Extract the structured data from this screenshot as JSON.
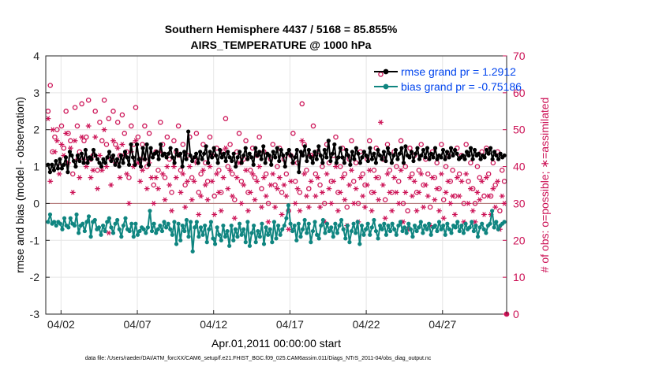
{
  "chart_data": {
    "type": "line",
    "title": "Southern Hemisphere 4437 / 5168 = 85.855%",
    "subtitle": "AIRS_TEMPERATURE @ 1000 hPa",
    "xlabel": "Apr.01,2011 00:00:00 start",
    "ylabel": "rmse and bias (model - observation)",
    "y2label": "# of obs: o=possible; ∗=assimilated",
    "footer": "data file: /Users/raeder/DAI/ATM_forcXX/CAM6_setup/f.e21.FHIST_BGC.f09_025.CAM6assim.011/Diags_NTrS_2011-04/obs_diag_output.nc",
    "xlim": [
      1.0,
      31.2
    ],
    "ylim": [
      -3,
      4
    ],
    "y2lim": [
      0,
      70
    ],
    "x_ticks": [
      {
        "value": 2,
        "label": "04/02"
      },
      {
        "value": 7,
        "label": "04/07"
      },
      {
        "value": 12,
        "label": "04/12"
      },
      {
        "value": 17,
        "label": "04/17"
      },
      {
        "value": 22,
        "label": "04/22"
      },
      {
        "value": 27,
        "label": "04/27"
      }
    ],
    "y_ticks": [
      -3,
      -2,
      -1,
      0,
      1,
      2,
      3,
      4
    ],
    "y2_ticks": [
      0,
      10,
      20,
      30,
      40,
      50,
      60,
      70
    ],
    "grid": true,
    "legend_position": "top-right",
    "colors": {
      "rmse": "#000000",
      "bias": "#0f8580",
      "obs": "#cc1155",
      "legend_text": "#0044ee"
    },
    "series": [
      {
        "name": "rmse grand pr = 1.2912",
        "axis": "left",
        "color": "#000000",
        "marker": "filled-circle",
        "values": [
          1.05,
          0.85,
          1.05,
          0.9,
          1.15,
          0.95,
          1.2,
          0.95,
          1.05,
          1.25,
          0.85,
          1.4,
          1.3,
          1.15,
          1.0,
          1.3,
          1.15,
          1.35,
          1.1,
          1.45,
          1.1,
          1.25,
          1.2,
          1.45,
          1.3,
          1.2,
          1.1,
          1.0,
          1.2,
          1.1,
          1.25,
          1.4,
          1.15,
          1.3,
          1.05,
          1.2,
          1.0,
          1.3,
          1.1,
          1.4,
          1.25,
          1.05,
          1.6,
          1.25,
          1.05,
          1.6,
          1.2,
          1.0,
          1.5,
          1.2,
          1.6,
          1.05,
          1.5,
          1.25,
          1.35,
          1.4,
          1.2,
          1.6,
          1.3,
          1.35,
          1.25,
          1.35,
          1.5,
          1.25,
          1.1,
          1.45,
          1.3,
          1.35,
          1.0,
          1.4,
          1.2,
          1.95,
          1.3,
          1.15,
          1.25,
          1.35,
          1.1,
          1.4,
          1.2,
          1.35,
          1.55,
          1.1,
          1.4,
          1.25,
          1.5,
          1.3,
          1.1,
          1.45,
          1.25,
          1.35,
          1.15,
          1.4,
          1.25,
          1.15,
          1.35,
          1.0,
          1.25,
          1.4,
          1.1,
          1.3,
          1.5,
          1.2,
          1.35,
          1.25,
          1.05,
          1.5,
          1.3,
          1.4,
          1.2,
          1.55,
          1.1,
          1.35,
          1.3,
          1.05,
          1.4,
          1.25,
          1.5,
          1.15,
          1.45,
          1.3,
          1.0,
          1.35,
          1.45,
          1.3,
          1.1,
          1.25,
          1.45,
          0.85,
          1.4,
          1.3,
          1.55,
          1.15,
          1.45,
          1.25,
          1.1,
          1.4,
          1.2,
          1.55,
          1.3,
          1.1,
          1.45,
          1.25,
          1.7,
          1.15,
          1.35,
          1.6,
          1.1,
          1.25,
          1.5,
          1.25,
          1.1,
          1.45,
          1.3,
          1.05,
          1.4,
          1.2,
          1.5,
          1.35,
          1.1,
          1.25,
          1.4,
          1.3,
          1.15,
          1.5,
          1.2,
          1.35,
          1.1,
          1.45,
          1.3,
          1.2,
          1.4,
          1.15,
          1.5,
          1.35,
          1.1,
          1.3,
          1.45,
          1.2,
          1.35,
          1.5,
          1.1,
          1.55,
          1.3,
          1.25,
          1.4,
          1.15,
          1.35,
          1.5,
          1.2,
          1.3,
          1.45,
          1.25,
          1.5,
          1.2,
          1.35,
          1.25,
          1.5,
          1.2,
          1.3,
          1.25,
          1.45,
          1.2,
          1.4,
          1.25,
          1.5,
          1.3,
          1.45,
          1.35,
          1.2,
          1.25,
          1.3,
          1.2,
          1.4,
          1.3,
          1.5,
          1.2,
          1.45,
          1.3,
          1.35,
          1.2,
          1.3,
          1.25,
          1.45,
          1.35,
          1.5,
          1.2,
          1.4,
          1.3,
          1.2,
          1.35,
          1.25,
          1.3
        ]
      },
      {
        "name": "bias grand pr = -0.75186",
        "axis": "left",
        "color": "#0f8580",
        "marker": "filled-circle",
        "values": [
          -0.5,
          -0.3,
          -0.55,
          -0.5,
          -0.6,
          -0.5,
          -0.55,
          -0.7,
          -0.4,
          -0.6,
          -0.65,
          -0.4,
          -0.55,
          -0.6,
          -0.3,
          -0.8,
          -0.6,
          -0.55,
          -0.75,
          -0.5,
          -0.35,
          -0.9,
          -0.5,
          -0.45,
          -0.7,
          -0.65,
          -0.85,
          -0.6,
          -0.75,
          -0.5,
          -0.4,
          -0.65,
          -0.8,
          -0.55,
          -0.45,
          -0.7,
          -0.9,
          -0.6,
          -0.4,
          -0.7,
          -0.75,
          -0.55,
          -0.9,
          -0.55,
          -0.85,
          -0.75,
          -0.65,
          -0.7,
          -0.8,
          -0.65,
          -0.2,
          -0.75,
          -0.55,
          -0.8,
          -0.7,
          -0.6,
          -0.75,
          -0.5,
          -0.65,
          -0.55,
          -0.7,
          -0.85,
          -0.5,
          -1.1,
          -0.55,
          -1.0,
          -0.6,
          -0.75,
          -0.45,
          -0.9,
          -0.5,
          -1.3,
          -0.65,
          -0.5,
          -0.9,
          -0.65,
          -0.85,
          -0.6,
          -1.05,
          -0.7,
          -0.5,
          -0.95,
          -1.1,
          -0.65,
          -0.85,
          -1.0,
          -0.6,
          -0.9,
          -0.75,
          -1.15,
          -0.6,
          -1.0,
          -0.7,
          -0.9,
          -0.55,
          -0.85,
          -0.7,
          -1.05,
          -0.5,
          -1.15,
          -0.8,
          -0.6,
          -1.05,
          -0.75,
          -0.9,
          -0.55,
          -1.1,
          -0.65,
          -0.85,
          -0.7,
          -1.05,
          -0.5,
          -0.95,
          -0.6,
          -0.85,
          -0.7,
          -0.6,
          -0.4,
          -0.05,
          -0.55,
          -0.75,
          -0.6,
          -1.0,
          -0.55,
          -0.9,
          -0.7,
          -0.45,
          -0.8,
          -0.55,
          -1.05,
          -0.75,
          -0.5,
          -0.85,
          -0.95,
          -0.6,
          -0.45,
          -0.8,
          -0.55,
          -0.75,
          -0.65,
          -0.9,
          -0.55,
          -0.8,
          -0.6,
          -0.45,
          -0.7,
          -0.95,
          -0.6,
          -1.05,
          -0.75,
          -0.55,
          -0.8,
          -0.5,
          -1.1,
          -0.6,
          -0.85,
          -0.7,
          -0.55,
          -0.85,
          -0.65,
          -0.45,
          -0.75,
          -0.95,
          -0.6,
          -0.7,
          -0.55,
          -0.85,
          -0.6,
          -0.75,
          -0.55,
          -0.7,
          -0.85,
          -0.6,
          -0.5,
          -0.75,
          -0.65,
          -0.8,
          -0.55,
          -0.7,
          -0.9,
          -0.6,
          -0.75,
          -0.65,
          -0.5,
          -0.8,
          -0.6,
          -0.7,
          -0.55,
          -0.85,
          -0.65,
          -0.6,
          -0.75,
          -0.5,
          -0.7,
          -0.6,
          -0.85,
          -0.55,
          -0.7,
          -0.8,
          -0.6,
          -0.65,
          -0.5,
          -0.75,
          -0.6,
          -0.8,
          -0.55,
          -0.7,
          -0.65,
          -0.5,
          -0.75,
          -0.6,
          -0.9,
          -0.65,
          -0.55,
          -0.7,
          -0.8,
          -0.6,
          -0.55,
          -0.2,
          -0.65,
          -0.5,
          -0.7,
          -0.6,
          -0.55,
          -0.5
        ]
      },
      {
        "name": "# of obs possible",
        "axis": "right",
        "color": "#cc1155",
        "marker": "open-circle",
        "values": [
          55,
          62,
          44,
          48,
          50,
          40,
          51,
          45,
          55,
          49,
          47,
          38,
          56,
          51,
          44,
          57,
          47,
          48,
          58,
          42,
          43,
          55,
          39,
          52,
          47,
          58,
          46,
          53,
          42,
          55,
          46,
          52,
          43,
          54,
          49,
          44,
          37,
          51,
          46,
          56,
          48,
          42,
          46,
          51,
          40,
          49,
          43,
          35,
          44,
          39,
          52,
          46,
          37,
          48,
          42,
          33,
          47,
          44,
          51,
          39,
          46,
          35,
          43,
          48,
          37,
          42,
          49,
          33,
          38,
          46,
          41,
          36,
          48,
          43,
          32,
          45,
          39,
          33,
          44,
          53,
          40,
          46,
          38,
          31,
          44,
          49,
          36,
          42,
          47,
          33,
          39,
          45,
          37,
          43,
          48,
          34,
          44,
          38,
          30,
          42,
          46,
          35,
          40,
          45,
          33,
          42,
          38,
          28,
          43,
          49,
          36,
          41,
          33,
          57,
          46,
          39,
          34,
          43,
          51,
          38,
          44,
          35,
          40,
          30,
          46,
          41,
          36,
          43,
          48,
          33,
          40,
          45,
          38,
          29,
          42,
          47,
          36,
          41,
          30,
          44,
          38,
          35,
          42,
          47,
          33,
          39,
          45,
          37,
          65,
          42,
          31,
          46,
          39,
          33,
          44,
          40,
          36,
          47,
          30,
          40,
          28,
          45,
          38,
          43,
          33,
          39,
          46,
          35,
          42,
          38,
          29,
          44,
          37,
          41,
          34,
          46,
          31,
          40,
          43,
          36,
          39,
          32,
          45,
          38,
          43,
          30,
          46,
          36,
          41,
          34,
          30,
          40,
          37,
          44,
          32,
          45,
          38,
          32,
          41,
          35,
          44,
          28,
          39,
          36
        ]
      },
      {
        "name": "# of obs assimilated",
        "axis": "right",
        "color": "#cc1155",
        "marker": "asterisk",
        "values": [
          53,
          36,
          50,
          44,
          47,
          38,
          46,
          43,
          49,
          41,
          45,
          33,
          47,
          42,
          37,
          48,
          42,
          40,
          51,
          37,
          39,
          48,
          34,
          43,
          39,
          50,
          40,
          22,
          35,
          47,
          41,
          45,
          37,
          46,
          43,
          38,
          30,
          44,
          40,
          47,
          41,
          36,
          39,
          42,
          34,
          41,
          37,
          30,
          37,
          34,
          44,
          38,
          31,
          40,
          35,
          28,
          40,
          37,
          43,
          33,
          38,
          29,
          36,
          40,
          31,
          36,
          41,
          27,
          32,
          39,
          35,
          31,
          40,
          36,
          27,
          38,
          33,
          28,
          37,
          45,
          34,
          39,
          32,
          26,
          37,
          41,
          30,
          35,
          39,
          28,
          33,
          38,
          31,
          36,
          40,
          29,
          37,
          32,
          25,
          35,
          38,
          29,
          34,
          37,
          27,
          35,
          32,
          23,
          36,
          41,
          30,
          34,
          28,
          47,
          38,
          32,
          29,
          36,
          43,
          32,
          37,
          29,
          33,
          25,
          38,
          34,
          30,
          36,
          40,
          28,
          33,
          37,
          31,
          24,
          35,
          39,
          30,
          34,
          25,
          37,
          32,
          29,
          35,
          39,
          28,
          33,
          37,
          31,
          52,
          35,
          26,
          38,
          33,
          28,
          37,
          33,
          30,
          39,
          25,
          33,
          23,
          37,
          32,
          36,
          28,
          33,
          38,
          29,
          35,
          32,
          24,
          37,
          31,
          34,
          28,
          38,
          26,
          33,
          36,
          30,
          32,
          27,
          37,
          32,
          36,
          25,
          38,
          30,
          34,
          28,
          25,
          33,
          31,
          36,
          27,
          37,
          32,
          27,
          34,
          29,
          36,
          23,
          32,
          30
        ]
      }
    ]
  }
}
